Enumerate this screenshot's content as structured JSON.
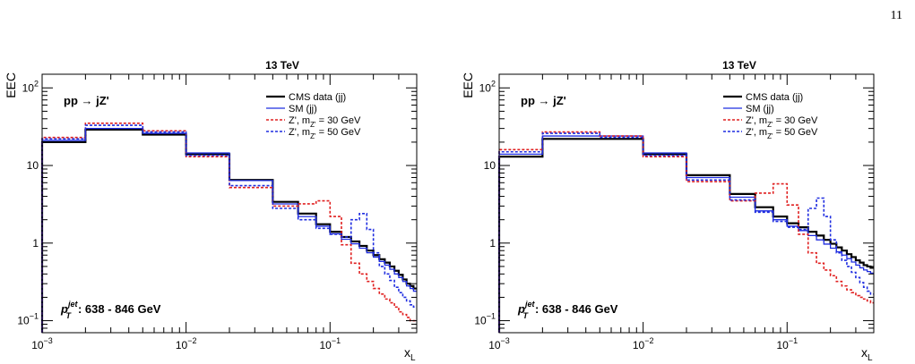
{
  "page": {
    "number": "11"
  },
  "chart_data": [
    {
      "type": "line",
      "title": "13 TeV",
      "process": "pp → jZ'",
      "ylabel": "EEC",
      "xlabel": "x",
      "xlabel_sub": "L",
      "xscale": "log",
      "yscale": "log",
      "xlim": [
        0.001,
        0.4
      ],
      "ylim": [
        0.07,
        150
      ],
      "grid": false,
      "legend_position": "top-right",
      "annotation": {
        "base": "p",
        "sup": "jet",
        "sub": "T",
        "text": ": 638 - 846 GeV"
      },
      "xticks": [
        {
          "value": 0.001,
          "base": "10",
          "exp": "−3"
        },
        {
          "value": 0.01,
          "base": "10",
          "exp": "−2"
        },
        {
          "value": 0.1,
          "base": "10",
          "exp": "−1"
        }
      ],
      "yticks": [
        {
          "value": 0.1,
          "base": "10",
          "exp": "−1"
        },
        {
          "value": 1,
          "base": "1",
          "exp": ""
        },
        {
          "value": 10,
          "base": "10",
          "exp": ""
        },
        {
          "value": 100,
          "base": "10",
          "exp": "2"
        }
      ],
      "bin_edges": [
        0.001,
        0.002,
        0.005,
        0.01,
        0.02,
        0.04,
        0.06,
        0.08,
        0.1,
        0.12,
        0.14,
        0.16,
        0.18,
        0.2,
        0.22,
        0.24,
        0.26,
        0.28,
        0.3,
        0.32,
        0.34,
        0.36,
        0.38,
        0.4
      ],
      "series": [
        {
          "name": "CMS data (jj)",
          "label_parts": [
            "CMS data (jj)"
          ],
          "color": "#000000",
          "dash": "",
          "width": 2.2,
          "values": [
            20,
            29,
            25,
            14,
            6.5,
            3.4,
            2.4,
            1.75,
            1.4,
            1.2,
            1.05,
            0.92,
            0.8,
            0.7,
            0.62,
            0.56,
            0.5,
            0.44,
            0.39,
            0.34,
            0.3,
            0.28,
            0.26
          ]
        },
        {
          "name": "SM (jj)",
          "label_parts": [
            "SM (jj)"
          ],
          "color": "#1f2de0",
          "dash": "",
          "width": 1.3,
          "values": [
            21,
            30,
            26,
            14.5,
            6.4,
            3.2,
            2.2,
            1.65,
            1.32,
            1.12,
            0.98,
            0.86,
            0.75,
            0.66,
            0.58,
            0.52,
            0.46,
            0.4,
            0.36,
            0.32,
            0.28,
            0.26,
            0.24
          ]
        },
        {
          "name": "Z', m_Z' = 30 GeV",
          "label_parts": [
            "Z', m",
            "Z'",
            " = 30 GeV"
          ],
          "color": "#e02020",
          "dash": "3,2",
          "width": 1.6,
          "values": [
            23,
            35,
            28,
            13,
            5.2,
            3.0,
            3.2,
            3.5,
            2.2,
            0.95,
            0.55,
            0.4,
            0.32,
            0.26,
            0.22,
            0.19,
            0.17,
            0.15,
            0.13,
            0.12,
            0.11,
            0.1,
            0.1
          ]
        },
        {
          "name": "Z', m_Z' = 50 GeV",
          "label_parts": [
            "Z', m",
            "Z'",
            " = 50 GeV"
          ],
          "color": "#1f2de0",
          "dash": "3,2",
          "width": 1.6,
          "values": [
            22,
            33,
            27,
            13.5,
            5.5,
            2.8,
            2.0,
            1.55,
            1.3,
            1.2,
            2.0,
            2.4,
            1.5,
            0.75,
            0.5,
            0.4,
            0.33,
            0.27,
            0.23,
            0.2,
            0.18,
            0.16,
            0.15
          ]
        }
      ]
    },
    {
      "type": "line",
      "title": "13 TeV",
      "process": "pp → jZ'",
      "ylabel": "EEC",
      "xlabel": "x",
      "xlabel_sub": "L",
      "xscale": "log",
      "yscale": "log",
      "xlim": [
        0.001,
        0.4
      ],
      "ylim": [
        0.07,
        150
      ],
      "grid": false,
      "legend_position": "top-right",
      "annotation": {
        "base": "p",
        "sup": "jet",
        "sub": "T",
        "text": ": 638 - 846 GeV"
      },
      "xticks": [
        {
          "value": 0.001,
          "base": "10",
          "exp": "−3"
        },
        {
          "value": 0.01,
          "base": "10",
          "exp": "−2"
        },
        {
          "value": 0.1,
          "base": "10",
          "exp": "−1"
        }
      ],
      "yticks": [
        {
          "value": 0.1,
          "base": "10",
          "exp": "−1"
        },
        {
          "value": 1,
          "base": "1",
          "exp": ""
        },
        {
          "value": 10,
          "base": "10",
          "exp": ""
        },
        {
          "value": 100,
          "base": "10",
          "exp": "2"
        }
      ],
      "bin_edges": [
        0.001,
        0.002,
        0.005,
        0.01,
        0.02,
        0.04,
        0.06,
        0.08,
        0.1,
        0.12,
        0.14,
        0.16,
        0.18,
        0.2,
        0.22,
        0.24,
        0.26,
        0.28,
        0.3,
        0.32,
        0.34,
        0.36,
        0.38,
        0.4
      ],
      "series": [
        {
          "name": "CMS data (jj)",
          "label_parts": [
            "CMS data (jj)"
          ],
          "color": "#000000",
          "dash": "",
          "width": 2.2,
          "values": [
            13,
            22,
            22,
            14,
            7.5,
            4.3,
            2.9,
            2.2,
            1.8,
            1.6,
            1.4,
            1.25,
            1.1,
            0.98,
            0.88,
            0.8,
            0.72,
            0.66,
            0.6,
            0.56,
            0.52,
            0.5,
            0.48
          ]
        },
        {
          "name": "SM (jj)",
          "label_parts": [
            "SM (jj)"
          ],
          "color": "#1f2de0",
          "dash": "",
          "width": 1.3,
          "values": [
            14,
            24,
            24,
            14.5,
            7.0,
            3.9,
            2.6,
            2.0,
            1.65,
            1.45,
            1.25,
            1.1,
            0.97,
            0.86,
            0.77,
            0.7,
            0.63,
            0.57,
            0.52,
            0.48,
            0.45,
            0.43,
            0.41
          ]
        },
        {
          "name": "Z', m_Z' = 30 GeV",
          "label_parts": [
            "Z', m",
            "Z'",
            " = 30 GeV"
          ],
          "color": "#e02020",
          "dash": "3,2",
          "width": 1.6,
          "values": [
            16,
            27,
            24,
            13,
            6.2,
            3.5,
            4.4,
            5.8,
            3.1,
            1.3,
            0.75,
            0.55,
            0.45,
            0.38,
            0.32,
            0.28,
            0.25,
            0.23,
            0.21,
            0.2,
            0.19,
            0.18,
            0.17
          ]
        },
        {
          "name": "Z', m_Z' = 50 GeV",
          "label_parts": [
            "Z', m",
            "Z'",
            " = 50 GeV"
          ],
          "color": "#1f2de0",
          "dash": "3,2",
          "width": 1.6,
          "values": [
            15,
            26,
            23,
            13.5,
            6.5,
            3.6,
            2.5,
            1.9,
            1.6,
            1.5,
            2.8,
            3.8,
            2.2,
            1.1,
            0.75,
            0.6,
            0.5,
            0.42,
            0.36,
            0.31,
            0.27,
            0.24,
            0.22
          ]
        }
      ]
    }
  ]
}
